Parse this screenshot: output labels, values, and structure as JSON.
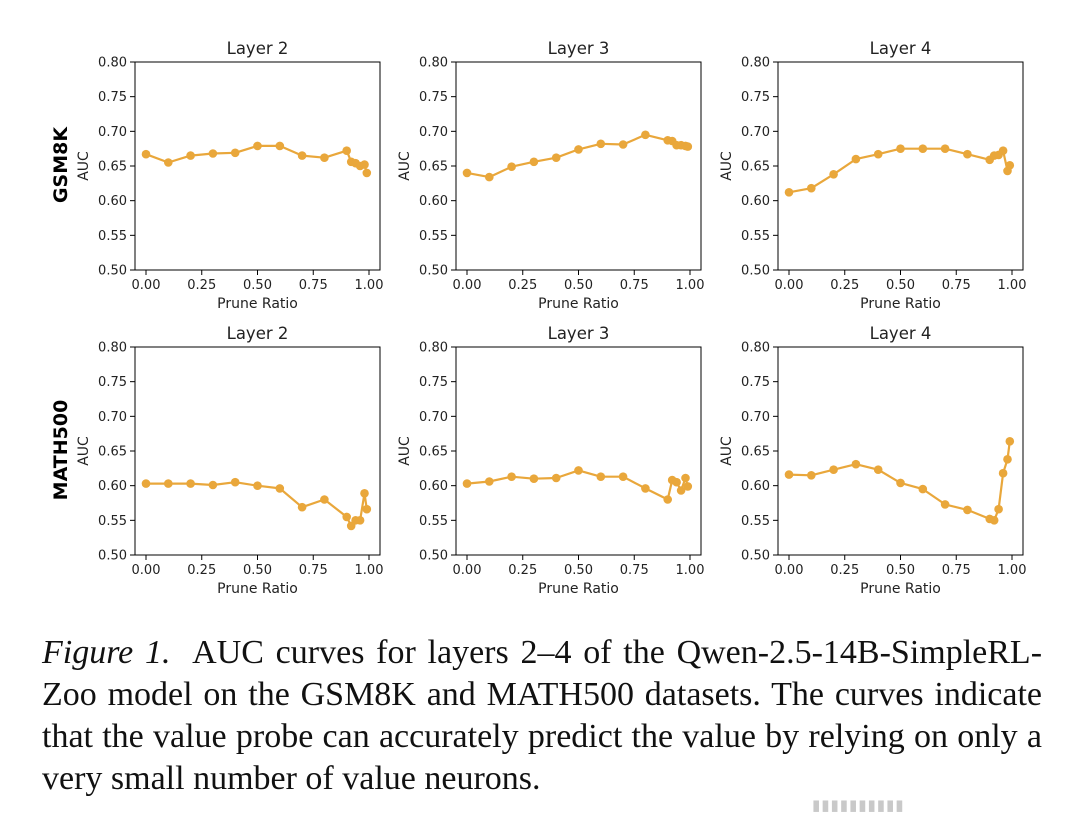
{
  "figure": {
    "row_labels": [
      "GSM8K",
      "MATH500"
    ],
    "line_color": "#e9a73b"
  },
  "chart_data": [
    {
      "type": "line",
      "row": "GSM8K",
      "title": "Layer 2",
      "xlabel": "Prune Ratio",
      "ylabel": "AUC",
      "xlim": [
        0.0,
        1.0
      ],
      "ylim": [
        0.5,
        0.8
      ],
      "xticks": [
        "0.00",
        "0.25",
        "0.50",
        "0.75",
        "1.00"
      ],
      "yticks": [
        "0.50",
        "0.55",
        "0.60",
        "0.65",
        "0.70",
        "0.75",
        "0.80"
      ],
      "x": [
        0.0,
        0.1,
        0.2,
        0.3,
        0.4,
        0.5,
        0.6,
        0.7,
        0.8,
        0.9,
        0.92,
        0.94,
        0.96,
        0.98,
        0.99
      ],
      "y": [
        0.667,
        0.655,
        0.665,
        0.668,
        0.669,
        0.679,
        0.679,
        0.665,
        0.662,
        0.672,
        0.656,
        0.654,
        0.65,
        0.652,
        0.64
      ]
    },
    {
      "type": "line",
      "row": "GSM8K",
      "title": "Layer 3",
      "xlabel": "Prune Ratio",
      "ylabel": "AUC",
      "xlim": [
        0.0,
        1.0
      ],
      "ylim": [
        0.5,
        0.8
      ],
      "xticks": [
        "0.00",
        "0.25",
        "0.50",
        "0.75",
        "1.00"
      ],
      "yticks": [
        "0.50",
        "0.55",
        "0.60",
        "0.65",
        "0.70",
        "0.75",
        "0.80"
      ],
      "x": [
        0.0,
        0.1,
        0.2,
        0.3,
        0.4,
        0.5,
        0.6,
        0.7,
        0.8,
        0.9,
        0.92,
        0.94,
        0.96,
        0.98,
        0.99
      ],
      "y": [
        0.64,
        0.634,
        0.649,
        0.656,
        0.662,
        0.674,
        0.682,
        0.681,
        0.695,
        0.687,
        0.686,
        0.68,
        0.68,
        0.679,
        0.678
      ]
    },
    {
      "type": "line",
      "row": "GSM8K",
      "title": "Layer 4",
      "xlabel": "Prune Ratio",
      "ylabel": "AUC",
      "xlim": [
        0.0,
        1.0
      ],
      "ylim": [
        0.5,
        0.8
      ],
      "xticks": [
        "0.00",
        "0.25",
        "0.50",
        "0.75",
        "1.00"
      ],
      "yticks": [
        "0.50",
        "0.55",
        "0.60",
        "0.65",
        "0.70",
        "0.75",
        "0.80"
      ],
      "x": [
        0.0,
        0.1,
        0.2,
        0.3,
        0.4,
        0.5,
        0.6,
        0.7,
        0.8,
        0.9,
        0.92,
        0.94,
        0.96,
        0.98,
        0.99
      ],
      "y": [
        0.612,
        0.618,
        0.638,
        0.66,
        0.667,
        0.675,
        0.675,
        0.675,
        0.667,
        0.659,
        0.665,
        0.666,
        0.672,
        0.643,
        0.651
      ]
    },
    {
      "type": "line",
      "row": "MATH500",
      "title": "Layer 2",
      "xlabel": "Prune Ratio",
      "ylabel": "AUC",
      "xlim": [
        0.0,
        1.0
      ],
      "ylim": [
        0.5,
        0.8
      ],
      "xticks": [
        "0.00",
        "0.25",
        "0.50",
        "0.75",
        "1.00"
      ],
      "yticks": [
        "0.50",
        "0.55",
        "0.60",
        "0.65",
        "0.70",
        "0.75",
        "0.80"
      ],
      "x": [
        0.0,
        0.1,
        0.2,
        0.3,
        0.4,
        0.5,
        0.6,
        0.7,
        0.8,
        0.9,
        0.92,
        0.94,
        0.96,
        0.98,
        0.99
      ],
      "y": [
        0.603,
        0.603,
        0.603,
        0.601,
        0.605,
        0.6,
        0.596,
        0.569,
        0.58,
        0.555,
        0.542,
        0.55,
        0.55,
        0.589,
        0.566
      ]
    },
    {
      "type": "line",
      "row": "MATH500",
      "title": "Layer 3",
      "xlabel": "Prune Ratio",
      "ylabel": "AUC",
      "xlim": [
        0.0,
        1.0
      ],
      "ylim": [
        0.5,
        0.8
      ],
      "xticks": [
        "0.00",
        "0.25",
        "0.50",
        "0.75",
        "1.00"
      ],
      "yticks": [
        "0.50",
        "0.55",
        "0.60",
        "0.65",
        "0.70",
        "0.75",
        "0.80"
      ],
      "x": [
        0.0,
        0.1,
        0.2,
        0.3,
        0.4,
        0.5,
        0.6,
        0.7,
        0.8,
        0.9,
        0.92,
        0.94,
        0.96,
        0.98,
        0.99
      ],
      "y": [
        0.603,
        0.606,
        0.613,
        0.61,
        0.611,
        0.622,
        0.613,
        0.613,
        0.596,
        0.58,
        0.608,
        0.605,
        0.593,
        0.611,
        0.599
      ]
    },
    {
      "type": "line",
      "row": "MATH500",
      "title": "Layer 4",
      "xlabel": "Prune Ratio",
      "ylabel": "AUC",
      "xlim": [
        0.0,
        1.0
      ],
      "ylim": [
        0.5,
        0.8
      ],
      "xticks": [
        "0.00",
        "0.25",
        "0.50",
        "0.75",
        "1.00"
      ],
      "yticks": [
        "0.50",
        "0.55",
        "0.60",
        "0.65",
        "0.70",
        "0.75",
        "0.80"
      ],
      "x": [
        0.0,
        0.1,
        0.2,
        0.3,
        0.4,
        0.5,
        0.6,
        0.7,
        0.8,
        0.9,
        0.92,
        0.94,
        0.96,
        0.98,
        0.99
      ],
      "y": [
        0.616,
        0.615,
        0.623,
        0.631,
        0.623,
        0.604,
        0.595,
        0.573,
        0.565,
        0.552,
        0.55,
        0.566,
        0.618,
        0.638,
        0.664
      ]
    }
  ],
  "caption": {
    "label": "Figure 1.",
    "text": "AUC curves for layers 2–4 of the Qwen-2.5-14B-SimpleRL-Zoo model on the GSM8K and MATH500 datasets. The curves indicate that the value probe can accurately predict the value by relying on only a very small number of value neurons."
  }
}
